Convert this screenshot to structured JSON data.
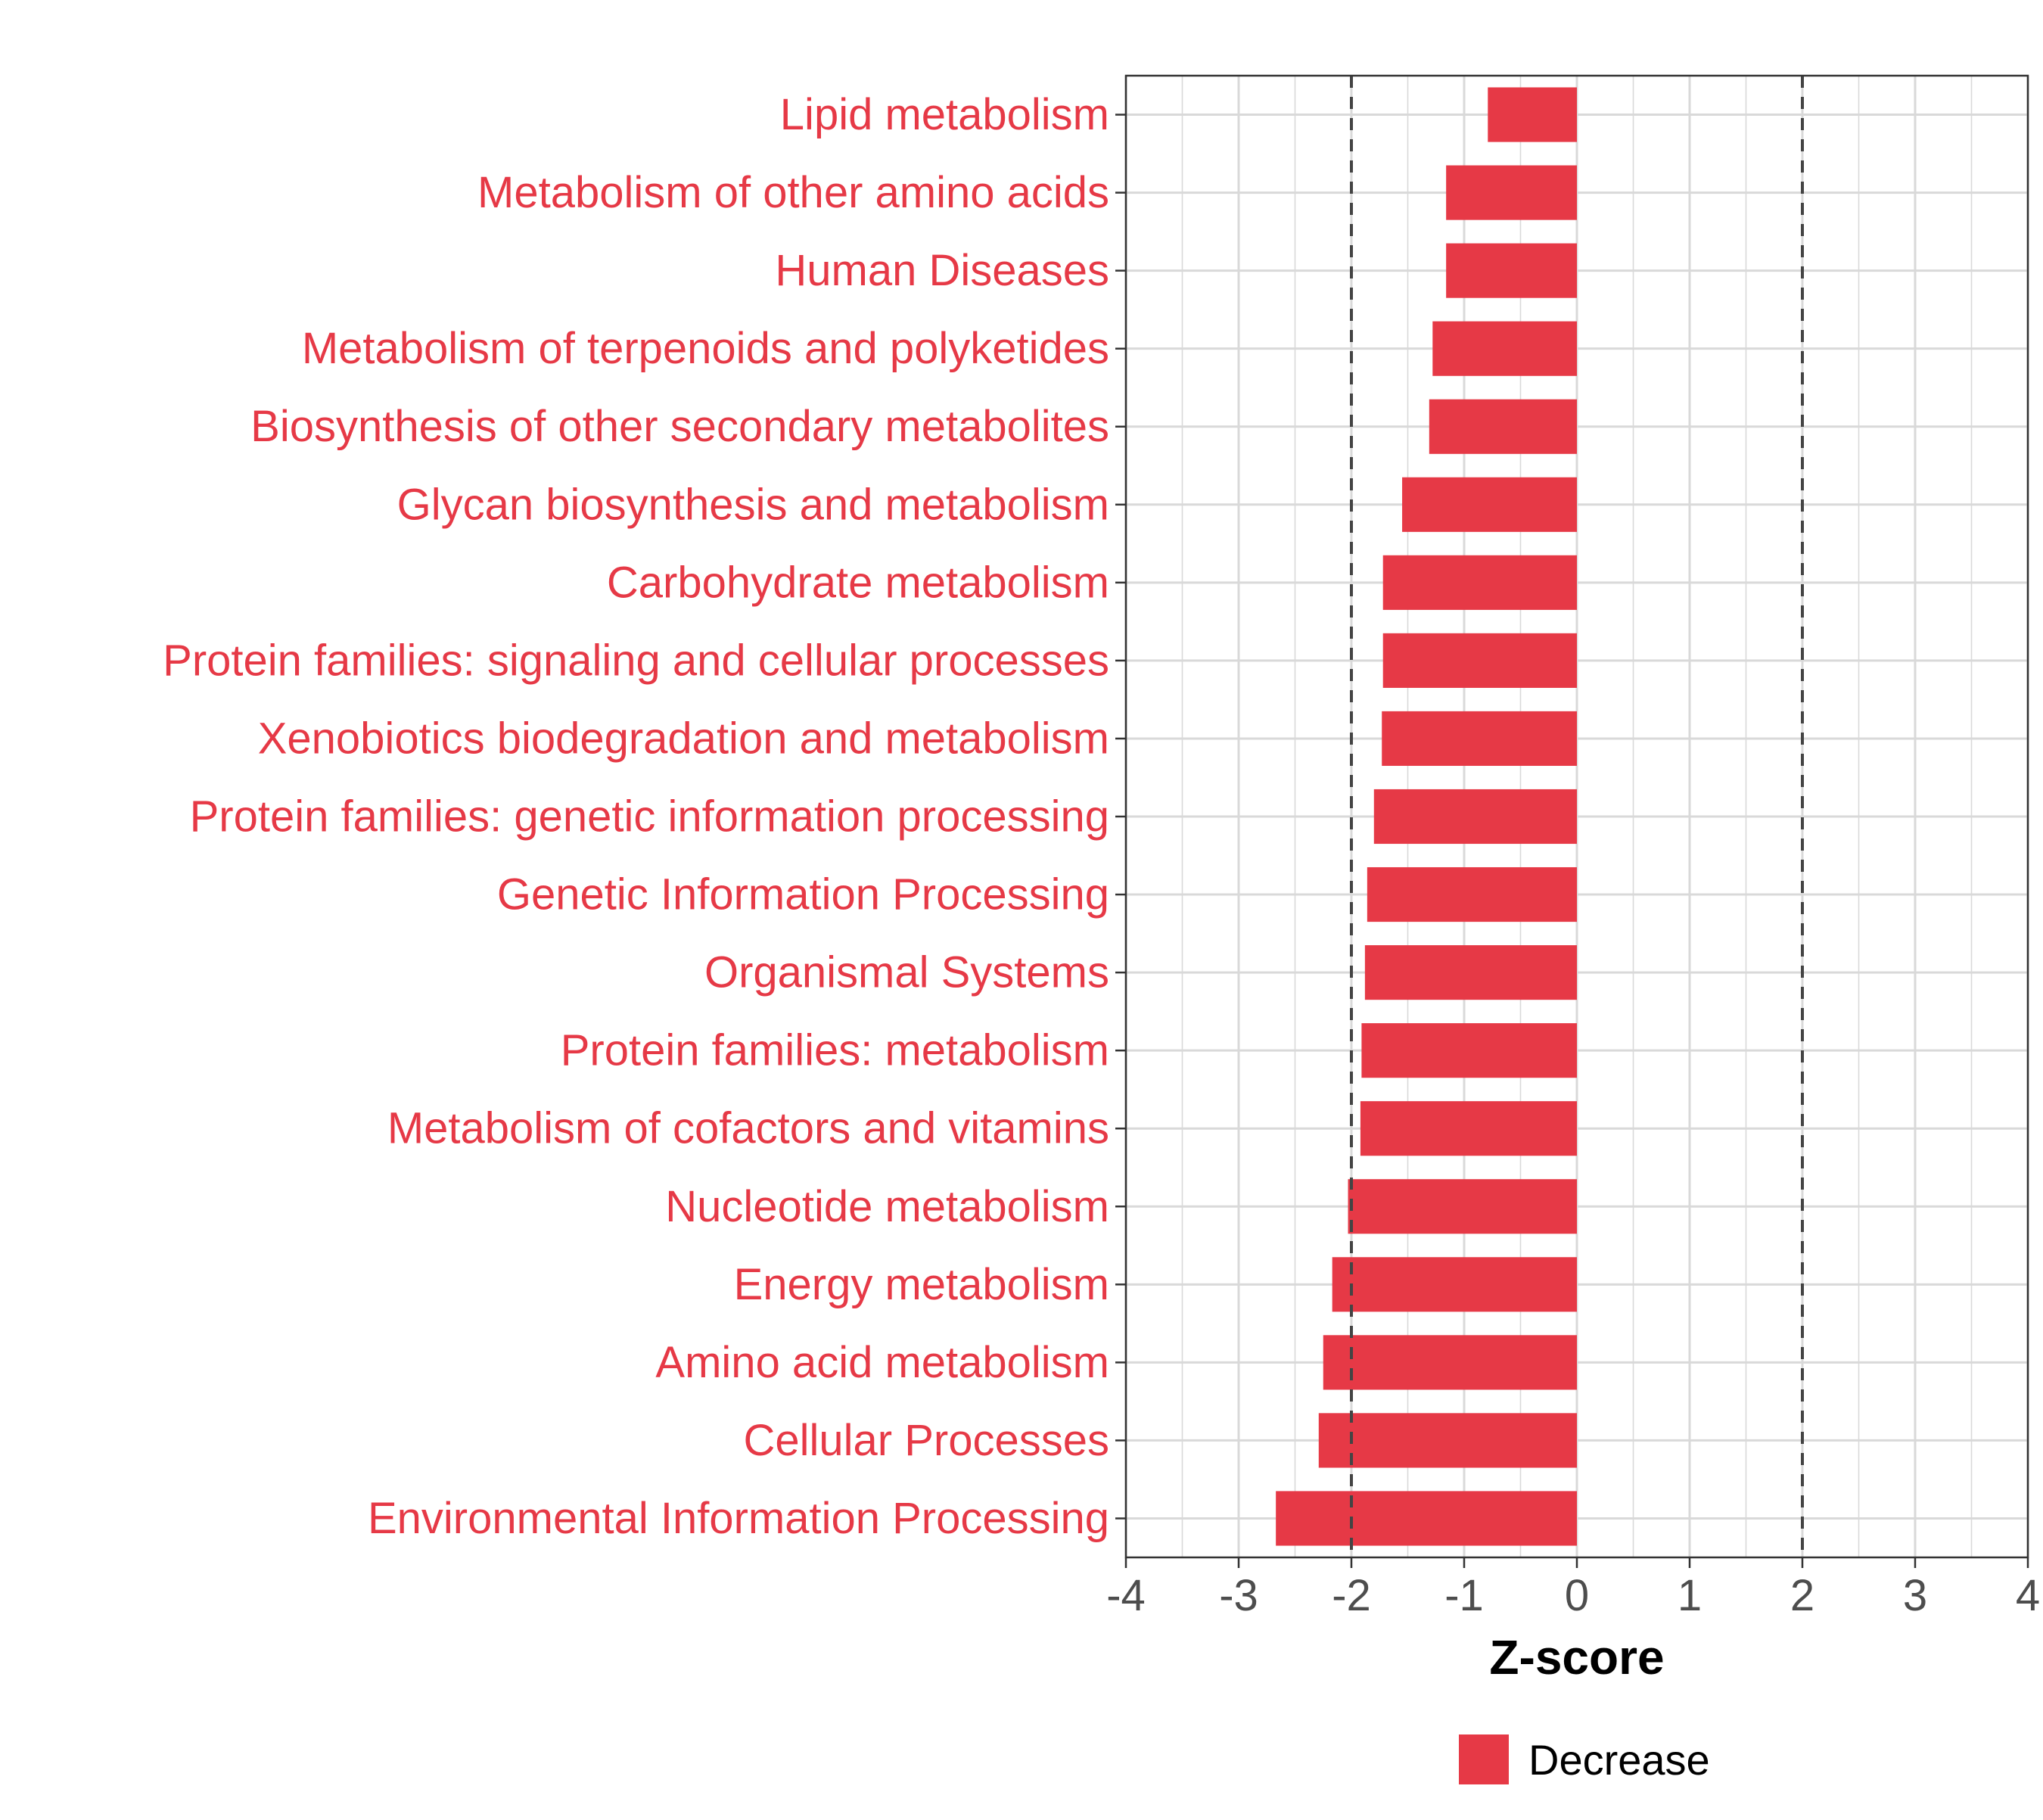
{
  "chart_data": {
    "type": "bar",
    "orientation": "horizontal",
    "categories": [
      "Lipid metabolism",
      "Metabolism of other amino acids",
      "Human Diseases",
      "Metabolism of terpenoids and polyketides",
      "Biosynthesis of other secondary metabolites",
      "Glycan biosynthesis and metabolism",
      "Carbohydrate metabolism",
      "Protein families: signaling and cellular processes",
      "Xenobiotics biodegradation and metabolism",
      "Protein families: genetic information processing",
      "Genetic Information Processing",
      "Organismal Systems",
      "Protein families: metabolism",
      "Metabolism of cofactors and vitamins",
      "Nucleotide metabolism",
      "Energy metabolism",
      "Amino acid metabolism",
      "Cellular Processes",
      "Environmental Information Processing"
    ],
    "series": [
      {
        "name": "Decrease",
        "color": "#E63946",
        "values": [
          -0.79,
          -1.16,
          -1.16,
          -1.28,
          -1.31,
          -1.55,
          -1.72,
          -1.72,
          -1.73,
          -1.8,
          -1.86,
          -1.88,
          -1.91,
          -1.92,
          -2.03,
          -2.17,
          -2.25,
          -2.29,
          -2.67
        ]
      }
    ],
    "xlabel": "Z-score",
    "xlim": [
      -4,
      4
    ],
    "xticks": [
      "-4",
      "-3",
      "-2",
      "-1",
      "0",
      "1",
      "2",
      "3",
      "4"
    ],
    "reference_lines": [
      -2,
      2
    ],
    "grid": true,
    "legend": {
      "position": "bottom",
      "entries": [
        "Decrease"
      ]
    },
    "label_color": "#E63946"
  }
}
